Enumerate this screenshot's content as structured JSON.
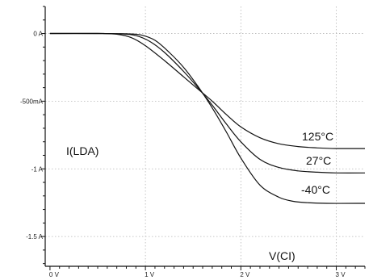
{
  "chart_data": {
    "type": "line",
    "title": "",
    "xlabel": "V(CI)",
    "ylabel": "I(LDA)",
    "xlim": [
      -0.05,
      3.3
    ],
    "ylim": [
      -1.72,
      0.2
    ],
    "x_ticks": [
      {
        "value": 0,
        "label": "0 V"
      },
      {
        "value": 1,
        "label": "1 V"
      },
      {
        "value": 2,
        "label": "2 V"
      },
      {
        "value": 3,
        "label": "3 V"
      }
    ],
    "y_ticks": [
      {
        "value": 0,
        "label": "0 A"
      },
      {
        "value": -0.5,
        "label": "-500mA"
      },
      {
        "value": -1,
        "label": "-1 A"
      },
      {
        "value": -1.5,
        "label": "-1.5 A"
      }
    ],
    "grid": true,
    "series": [
      {
        "name": "125°C",
        "x": [
          0,
          0.5,
          0.7,
          0.85,
          1.0,
          1.2,
          1.4,
          1.55,
          1.7,
          1.85,
          2.0,
          2.2,
          2.4,
          2.6,
          2.8,
          3.0,
          3.3
        ],
        "y": [
          0,
          0,
          -0.005,
          -0.03,
          -0.09,
          -0.2,
          -0.32,
          -0.41,
          -0.5,
          -0.6,
          -0.69,
          -0.77,
          -0.815,
          -0.835,
          -0.845,
          -0.85,
          -0.85
        ]
      },
      {
        "name": "27°C",
        "x": [
          0,
          0.5,
          0.75,
          0.9,
          1.05,
          1.2,
          1.4,
          1.55,
          1.7,
          1.85,
          2.0,
          2.2,
          2.4,
          2.6,
          2.8,
          3.0,
          3.3
        ],
        "y": [
          0,
          0,
          -0.002,
          -0.015,
          -0.06,
          -0.14,
          -0.28,
          -0.4,
          -0.53,
          -0.67,
          -0.8,
          -0.93,
          -0.99,
          -1.015,
          -1.025,
          -1.03,
          -1.03
        ]
      },
      {
        "name": "-40°C",
        "x": [
          0,
          0.5,
          0.8,
          0.95,
          1.1,
          1.25,
          1.4,
          1.55,
          1.7,
          1.85,
          2.0,
          2.2,
          2.4,
          2.55,
          2.7,
          2.9,
          3.3
        ],
        "y": [
          0,
          0,
          -0.002,
          -0.01,
          -0.05,
          -0.14,
          -0.25,
          -0.39,
          -0.55,
          -0.73,
          -0.92,
          -1.12,
          -1.21,
          -1.24,
          -1.25,
          -1.255,
          -1.255
        ]
      }
    ],
    "annotations": [
      {
        "series": "125°C",
        "text": "125°C"
      },
      {
        "series": "27°C",
        "text": "27°C"
      },
      {
        "series": "-40°C",
        "text": "-40°C"
      }
    ]
  }
}
